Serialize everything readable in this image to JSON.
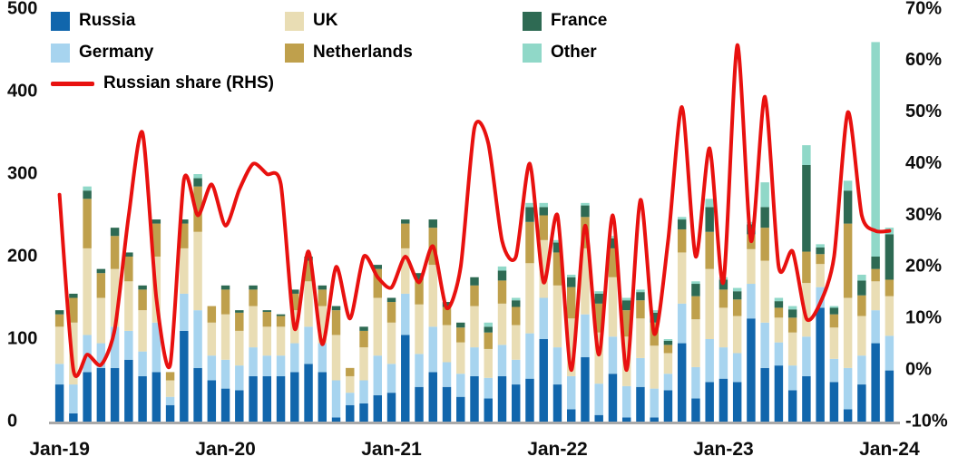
{
  "chart_data": {
    "type": "bar",
    "subtype": "stacked-bar-with-line",
    "title": "",
    "months": [
      "Jan-19",
      "Feb-19",
      "Mar-19",
      "Apr-19",
      "May-19",
      "Jun-19",
      "Jul-19",
      "Aug-19",
      "Sep-19",
      "Oct-19",
      "Nov-19",
      "Dec-19",
      "Jan-20",
      "Feb-20",
      "Mar-20",
      "Apr-20",
      "May-20",
      "Jun-20",
      "Jul-20",
      "Aug-20",
      "Sep-20",
      "Oct-20",
      "Nov-20",
      "Dec-20",
      "Jan-21",
      "Feb-21",
      "Mar-21",
      "Apr-21",
      "May-21",
      "Jun-21",
      "Jul-21",
      "Aug-21",
      "Sep-21",
      "Oct-21",
      "Nov-21",
      "Dec-21",
      "Jan-22",
      "Feb-22",
      "Mar-22",
      "Apr-22",
      "May-22",
      "Jun-22",
      "Jul-22",
      "Aug-22",
      "Sep-22",
      "Oct-22",
      "Nov-22",
      "Dec-22",
      "Jan-23",
      "Feb-23",
      "Mar-23",
      "Apr-23",
      "May-23",
      "Jun-23",
      "Jul-23",
      "Aug-23",
      "Sep-23",
      "Oct-23",
      "Nov-23",
      "Dec-23",
      "Jan-24"
    ],
    "x_tick_labels": [
      "Jan-19",
      "Jan-20",
      "Jan-21",
      "Jan-22",
      "Jan-23",
      "Jan-24"
    ],
    "x_tick_indices": [
      0,
      12,
      24,
      36,
      48,
      60
    ],
    "left_axis": {
      "min": 0,
      "max": 500,
      "ticks": [
        0,
        100,
        200,
        300,
        400,
        500
      ]
    },
    "right_axis": {
      "min": -10,
      "max": 70,
      "ticks": [
        -10,
        0,
        10,
        20,
        30,
        40,
        50,
        60,
        70
      ],
      "suffix": "%"
    },
    "stack_order": [
      "Russia",
      "Germany",
      "UK",
      "Netherlands",
      "France",
      "Other"
    ],
    "series": [
      {
        "name": "Russia",
        "color": "#1166ac",
        "values": [
          45,
          10,
          60,
          65,
          65,
          75,
          55,
          60,
          20,
          110,
          65,
          50,
          40,
          38,
          55,
          55,
          55,
          60,
          70,
          60,
          5,
          20,
          22,
          32,
          35,
          105,
          42,
          60,
          42,
          30,
          55,
          28,
          55,
          45,
          52,
          100,
          45,
          15,
          78,
          8,
          58,
          5,
          42,
          5,
          38,
          95,
          28,
          48,
          52,
          48,
          125,
          65,
          68,
          38,
          55,
          138,
          48,
          15,
          45,
          95,
          62
        ]
      },
      {
        "name": "Germany",
        "color": "#a7d4ef",
        "values": [
          25,
          35,
          45,
          30,
          50,
          35,
          30,
          60,
          10,
          45,
          70,
          30,
          35,
          30,
          35,
          25,
          25,
          35,
          45,
          35,
          45,
          15,
          28,
          48,
          35,
          50,
          40,
          55,
          30,
          28,
          35,
          25,
          38,
          30,
          55,
          50,
          45,
          40,
          52,
          38,
          45,
          38,
          35,
          35,
          20,
          48,
          38,
          52,
          38,
          35,
          42,
          55,
          28,
          30,
          48,
          25,
          28,
          50,
          35,
          40,
          42
        ]
      },
      {
        "name": "UK",
        "color": "#e9ddb4",
        "values": [
          45,
          75,
          105,
          55,
          70,
          60,
          50,
          80,
          20,
          55,
          95,
          40,
          55,
          42,
          50,
          35,
          35,
          40,
          55,
          45,
          55,
          20,
          40,
          70,
          50,
          55,
          60,
          75,
          45,
          38,
          50,
          35,
          50,
          42,
          85,
          70,
          75,
          70,
          80,
          62,
          72,
          60,
          48,
          52,
          25,
          62,
          58,
          85,
          48,
          45,
          42,
          75,
          30,
          40,
          65,
          28,
          38,
          85,
          48,
          35,
          48
        ]
      },
      {
        "name": "Netherlands",
        "color": "#bfa04c",
        "values": [
          15,
          30,
          60,
          30,
          40,
          30,
          25,
          40,
          10,
          30,
          55,
          20,
          30,
          22,
          20,
          18,
          13,
          20,
          25,
          20,
          30,
          10,
          20,
          35,
          25,
          30,
          30,
          45,
          22,
          18,
          25,
          20,
          28,
          22,
          50,
          30,
          40,
          38,
          38,
          35,
          35,
          32,
          22,
          28,
          10,
          28,
          28,
          45,
          22,
          20,
          18,
          40,
          12,
          18,
          38,
          12,
          16,
          90,
          25,
          15,
          20
        ]
      },
      {
        "name": "France",
        "color": "#2e6a53",
        "values": [
          5,
          5,
          10,
          5,
          10,
          5,
          5,
          5,
          0,
          5,
          10,
          0,
          5,
          3,
          5,
          2,
          2,
          5,
          5,
          5,
          5,
          0,
          5,
          5,
          5,
          5,
          8,
          10,
          6,
          6,
          10,
          7,
          12,
          8,
          18,
          10,
          12,
          12,
          14,
          12,
          12,
          12,
          10,
          12,
          5,
          12,
          15,
          30,
          12,
          10,
          12,
          25,
          8,
          10,
          105,
          8,
          8,
          40,
          18,
          15,
          55
        ]
      },
      {
        "name": "Other",
        "color": "#90d8c8",
        "values": [
          0,
          0,
          5,
          0,
          0,
          0,
          0,
          0,
          0,
          0,
          5,
          0,
          0,
          0,
          0,
          0,
          0,
          0,
          0,
          0,
          0,
          0,
          0,
          0,
          0,
          0,
          0,
          0,
          0,
          0,
          0,
          5,
          5,
          3,
          5,
          5,
          3,
          3,
          3,
          3,
          3,
          3,
          3,
          3,
          2,
          3,
          3,
          10,
          3,
          4,
          3,
          30,
          4,
          4,
          24,
          4,
          2,
          12,
          7,
          260,
          8
        ]
      }
    ],
    "line": {
      "name": "Russian share (RHS)",
      "color": "#e8110f",
      "axis": "right",
      "values": [
        34,
        0,
        3,
        1,
        8,
        30,
        46,
        14,
        1,
        37,
        30,
        36,
        28,
        35,
        40,
        38,
        36,
        8,
        23,
        5,
        20,
        10,
        22,
        18,
        16,
        22,
        17,
        24,
        12,
        20,
        47,
        44,
        25,
        22,
        40,
        17,
        30,
        0,
        28,
        3,
        30,
        0,
        33,
        7,
        25,
        51,
        22,
        43,
        17,
        63,
        25,
        53,
        20,
        23,
        10,
        13,
        22,
        50,
        30,
        27,
        27
      ]
    }
  },
  "legend": {
    "items": [
      {
        "label": "Russia",
        "color": "#1166ac"
      },
      {
        "label": "UK",
        "color": "#e9ddb4"
      },
      {
        "label": "France",
        "color": "#2e6a53"
      },
      {
        "label": "Germany",
        "color": "#a7d4ef"
      },
      {
        "label": "Netherlands",
        "color": "#bfa04c"
      },
      {
        "label": "Other",
        "color": "#90d8c8"
      }
    ],
    "line_label": "Russian share (RHS)",
    "line_color": "#e8110f"
  }
}
